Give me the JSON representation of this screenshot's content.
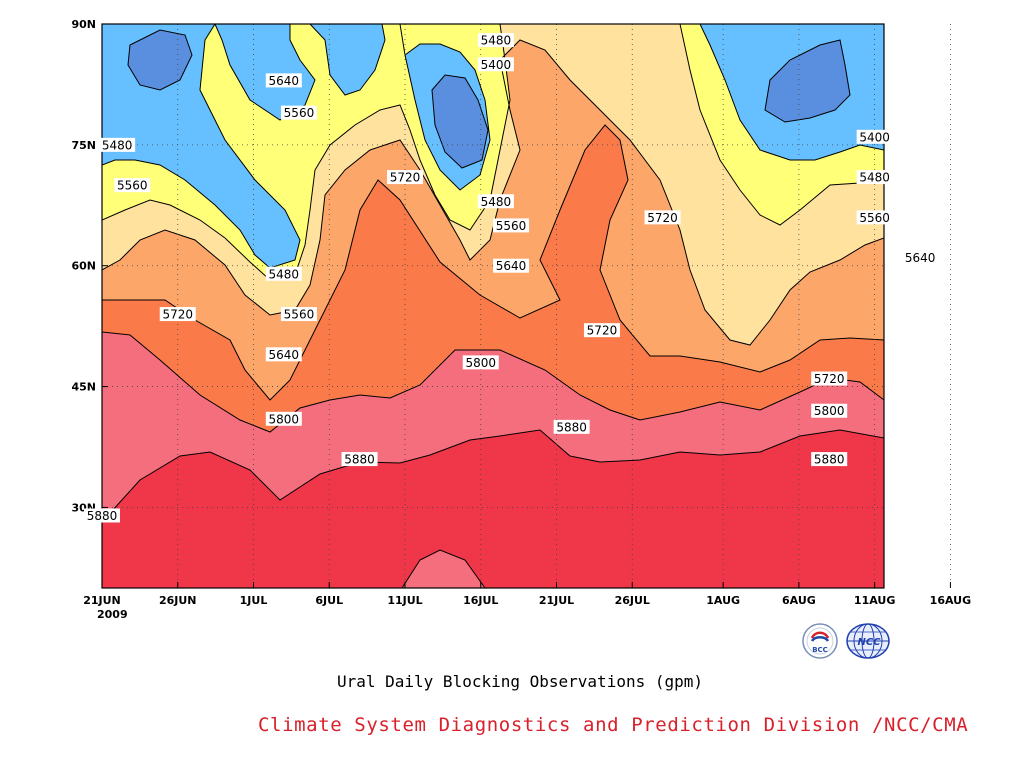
{
  "chart_data": {
    "type": "heatmap",
    "title": "Ural Daily Blocking Observations (gpm)",
    "xlabel": "",
    "ylabel": "",
    "x_ticks": [
      "21JUN",
      "26JUN",
      "1JUL",
      "6JUL",
      "11JUL",
      "16JUL",
      "21JUL",
      "26JUL",
      "1AUG",
      "6AUG",
      "11AUG",
      "16AUG"
    ],
    "x_year": "2009",
    "y_ticks": [
      "30N",
      "45N",
      "60N",
      "75N",
      "90N"
    ],
    "ylim": [
      20,
      90
    ],
    "contour_levels": [
      5400,
      5480,
      5560,
      5640,
      5720,
      5800,
      5880
    ],
    "fill_colors": {
      "below_5400": "#5a8fe0",
      "5400_5480": "#66c0ff",
      "5480_5560": "#ffff78",
      "5560_5640": "#ffe29e",
      "5640_5720": "#fca66a",
      "5720_5800": "#fa7a4a",
      "5800_5880": "#f56e7e",
      "above_5880": "#f0374a"
    },
    "contour_labels": [
      {
        "value": "5480",
        "date": "22JUN",
        "lat": "75N"
      },
      {
        "value": "5560",
        "date": "23JUN",
        "lat": "70N"
      },
      {
        "value": "5640",
        "date": "3JUL",
        "lat": "83N"
      },
      {
        "value": "5560",
        "date": "4JUL",
        "lat": "79N"
      },
      {
        "value": "5480",
        "date": "3JUL",
        "lat": "59N"
      },
      {
        "value": "5560",
        "date": "4JUL",
        "lat": "54N"
      },
      {
        "value": "5640",
        "date": "3JUL",
        "lat": "49N"
      },
      {
        "value": "5720",
        "date": "26JUN",
        "lat": "54N"
      },
      {
        "value": "5800",
        "date": "3JUL",
        "lat": "41N"
      },
      {
        "value": "5880",
        "date": "8JUL",
        "lat": "36N"
      },
      {
        "value": "5880",
        "date": "21JUN",
        "lat": "29N"
      },
      {
        "value": "5720",
        "date": "11JUL",
        "lat": "71N"
      },
      {
        "value": "5480",
        "date": "17JUL",
        "lat": "88N"
      },
      {
        "value": "5400",
        "date": "17JUL",
        "lat": "85N"
      },
      {
        "value": "5480",
        "date": "17JUL",
        "lat": "68N"
      },
      {
        "value": "5560",
        "date": "18JUL",
        "lat": "65N"
      },
      {
        "value": "5640",
        "date": "18JUL",
        "lat": "60N"
      },
      {
        "value": "5800",
        "date": "16JUL",
        "lat": "48N"
      },
      {
        "value": "5720",
        "date": "24JUL",
        "lat": "52N"
      },
      {
        "value": "5880",
        "date": "22JUL",
        "lat": "40N"
      },
      {
        "value": "5720",
        "date": "28JUL",
        "lat": "66N"
      },
      {
        "value": "5400",
        "date": "11AUG",
        "lat": "76N"
      },
      {
        "value": "5480",
        "date": "11AUG",
        "lat": "71N"
      },
      {
        "value": "5560",
        "date": "11AUG",
        "lat": "66N"
      },
      {
        "value": "5640",
        "date": "14AUG",
        "lat": "61N"
      },
      {
        "value": "5720",
        "date": "8AUG",
        "lat": "46N"
      },
      {
        "value": "5800",
        "date": "8AUG",
        "lat": "42N"
      },
      {
        "value": "5880",
        "date": "8AUG",
        "lat": "36N"
      }
    ],
    "grid": true,
    "legend": "none"
  },
  "footer": "Climate System Diagnostics and Prediction Division /NCC/CMA",
  "logos": [
    {
      "icon": "bcc-logo",
      "text": "BCC"
    },
    {
      "icon": "ncc-logo",
      "text": "NCC"
    }
  ]
}
